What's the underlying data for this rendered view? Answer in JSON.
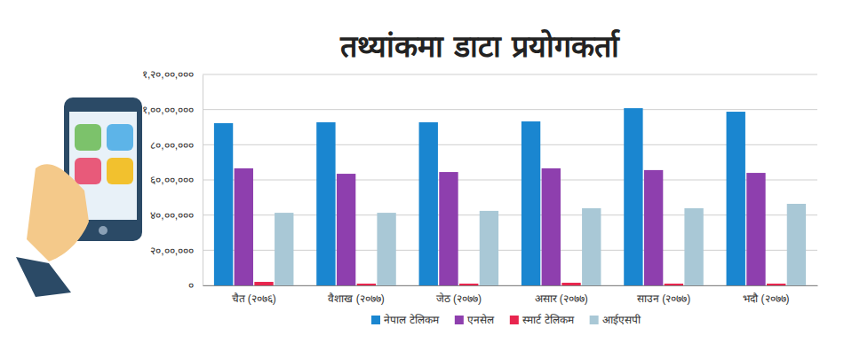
{
  "chart_data": {
    "type": "bar",
    "title": "तथ्यांकमा डाटा प्रयोगकर्ता",
    "categories": [
      "चैत (२०७६)",
      "वैशाख (२०७७)",
      "जेठ (२०७७)",
      "असार (२०७७)",
      "साउन (२०७७)",
      "भदौ (२०७७)"
    ],
    "series": [
      {
        "name": "नेपाल टेलिकम",
        "color": "#1a86d0",
        "values": [
          9230000,
          9280000,
          9280000,
          9330000,
          10080000,
          9880000
        ]
      },
      {
        "name": "एनसेल",
        "color": "#8e3fae",
        "values": [
          6660000,
          6350000,
          6450000,
          6660000,
          6560000,
          6400000
        ]
      },
      {
        "name": "स्मार्ट टेलिकम",
        "color": "#e8254e",
        "values": [
          200000,
          100000,
          100000,
          150000,
          100000,
          100000
        ]
      },
      {
        "name": "आईएसपी",
        "color": "#a9c8d6",
        "values": [
          4130000,
          4130000,
          4240000,
          4390000,
          4390000,
          4640000
        ]
      }
    ],
    "ylim": [
      0,
      12000000
    ],
    "yticks": [
      {
        "value": 0,
        "label": "०"
      },
      {
        "value": 2000000,
        "label": "२०,००,०००"
      },
      {
        "value": 4000000,
        "label": "४०,००,०००"
      },
      {
        "value": 6000000,
        "label": "६०,००,०००"
      },
      {
        "value": 8000000,
        "label": "८०,००,०००"
      },
      {
        "value": 10000000,
        "label": "१,००,००,०००"
      },
      {
        "value": 12000000,
        "label": "१,२०,००,०००"
      }
    ],
    "grid": true,
    "legend": "bottom"
  }
}
